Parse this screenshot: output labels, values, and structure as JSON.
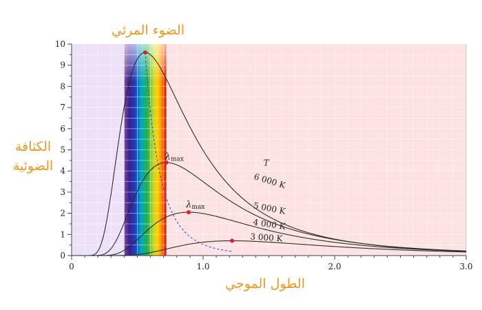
{
  "chart_data": {
    "type": "line",
    "title": "الضوء المرئي",
    "xlabel": "الطول الموجي",
    "ylabel": [
      "الكثافة",
      "الضوئية"
    ],
    "xlim": [
      0,
      3.0
    ],
    "ylim": [
      0,
      10
    ],
    "x_ticks": [
      "0",
      "1.0",
      "2.0",
      "3.0"
    ],
    "y_ticks": [
      "0",
      "1",
      "2",
      "3",
      "4",
      "5",
      "6",
      "7",
      "8",
      "9",
      "10"
    ],
    "grid": true,
    "regions": [
      {
        "name": "ultraviolet",
        "x": [
          0,
          0.4
        ],
        "color": "#ede1fa"
      },
      {
        "name": "visible",
        "x": [
          0.4,
          0.72
        ]
      },
      {
        "name": "infrared",
        "x": [
          0.72,
          3.0
        ],
        "color": "#fde2e3"
      }
    ],
    "legend_title": "T",
    "series": [
      {
        "name": "6 000 K",
        "peak_x": 0.56,
        "peak_y": 9.6
      },
      {
        "name": "5 000 K",
        "peak_x": 0.72,
        "peak_y": 4.4
      },
      {
        "name": "4 000 K",
        "peak_x": 0.89,
        "peak_y": 2.05
      },
      {
        "name": "3 000 K",
        "peak_x": 1.22,
        "peak_y": 0.7
      }
    ],
    "peak_marker_color": "#e02020",
    "peak_locus_color": "#3a48e6",
    "peak_label_base": "λ",
    "peak_label_sub": "max"
  }
}
